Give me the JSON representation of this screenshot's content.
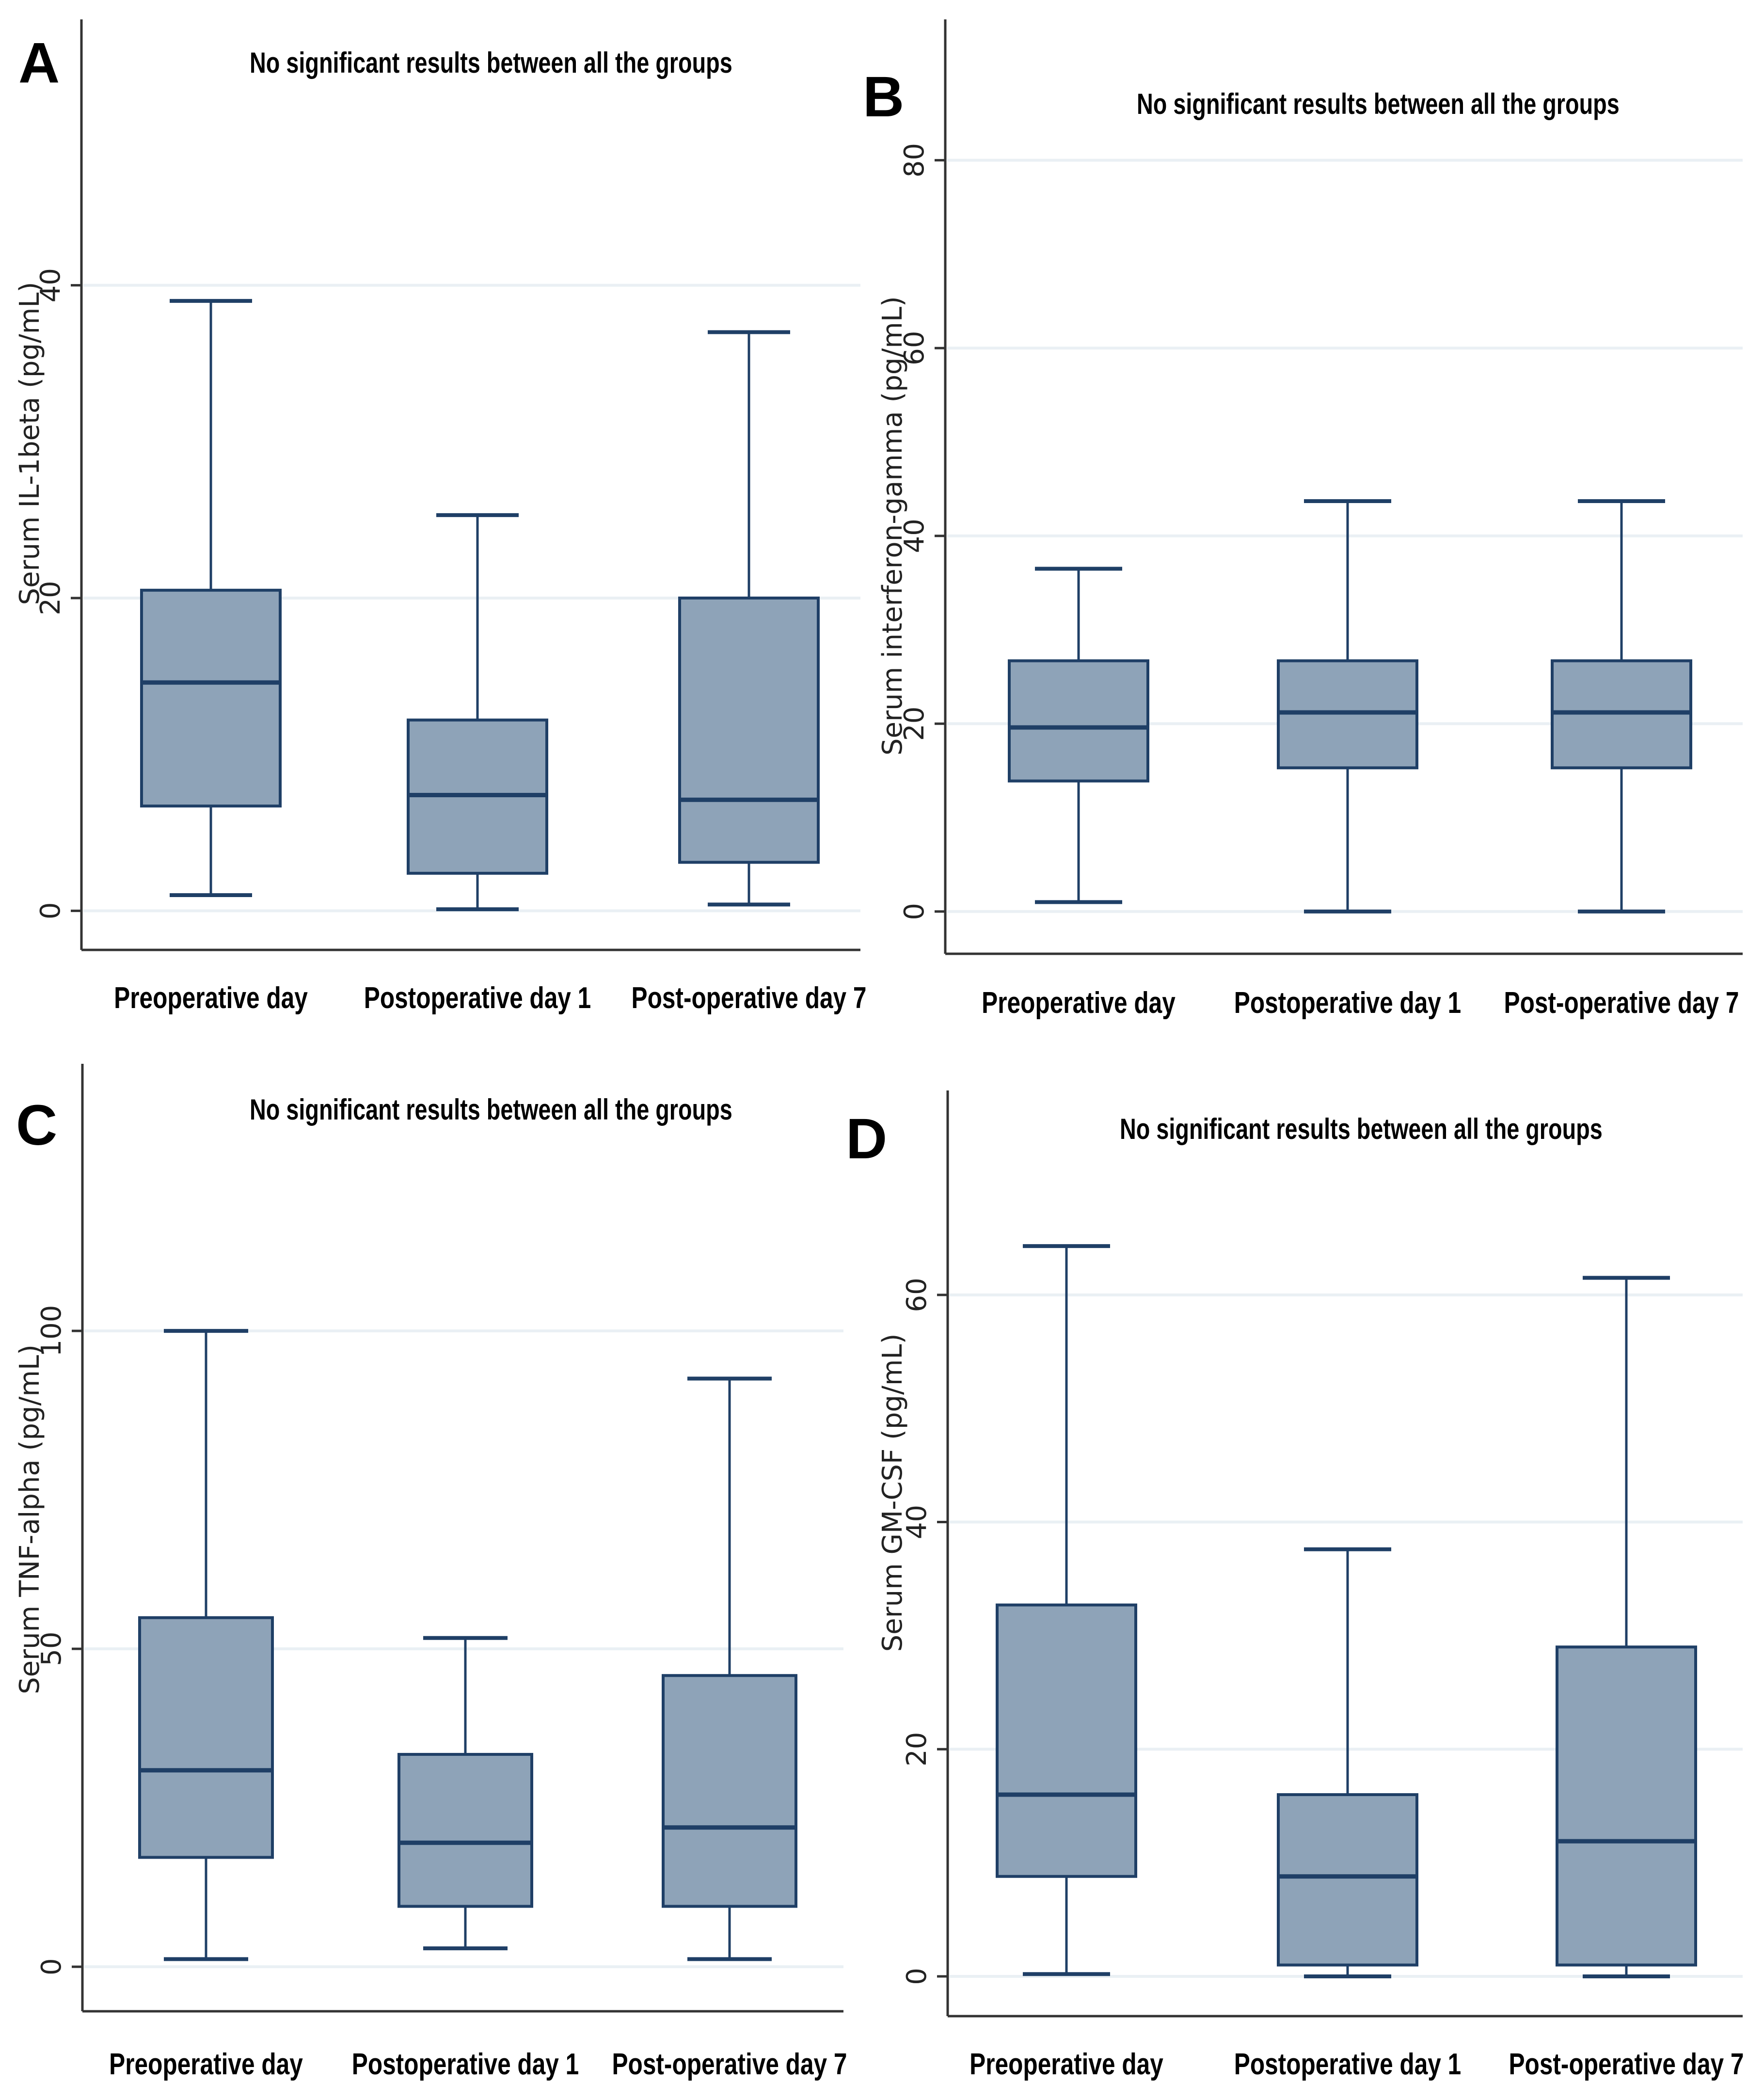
{
  "colors": {
    "box_fill": "#8ea3b8",
    "box_stroke": "#1f3f66",
    "grid": "#eaf0f4",
    "axis": "#333333"
  },
  "chart_data": [
    {
      "panel": "A",
      "type": "box",
      "title": "No significant results between all the groups",
      "xlabel": "",
      "ylabel": "Serum IL-1beta (pg/mL)",
      "categories": [
        "Preoperative day",
        "Postoperative day 1",
        "Post-operative day 7"
      ],
      "yticks": [
        0,
        20,
        40
      ],
      "ylim": [
        -2.5,
        57
      ],
      "boxes": [
        {
          "min": 1,
          "q1": 6.7,
          "median": 14.6,
          "q3": 20.5,
          "max": 39
        },
        {
          "min": 0.1,
          "q1": 2.4,
          "median": 7.4,
          "q3": 12.2,
          "max": 25.3
        },
        {
          "min": 0.4,
          "q1": 3.1,
          "median": 7.1,
          "q3": 20,
          "max": 37
        }
      ]
    },
    {
      "panel": "B",
      "type": "box",
      "title": "No significant results between all the groups",
      "xlabel": "",
      "ylabel": "Serum interferon-gamma (pg/mL)",
      "categories": [
        "Preoperative day",
        "Postoperative day 1",
        "Post-operative day 7"
      ],
      "yticks": [
        0,
        20,
        40,
        60,
        80
      ],
      "ylim": [
        -4.5,
        95
      ],
      "boxes": [
        {
          "min": 1,
          "q1": 13.9,
          "median": 19.6,
          "q3": 26.7,
          "max": 36.5
        },
        {
          "min": 0,
          "q1": 15.3,
          "median": 21.2,
          "q3": 26.7,
          "max": 43.7
        },
        {
          "min": 0,
          "q1": 15.3,
          "median": 21.2,
          "q3": 26.7,
          "max": 43.7
        }
      ]
    },
    {
      "panel": "C",
      "type": "box",
      "title": "No significant results between all the groups",
      "xlabel": "",
      "ylabel": "Serum TNF-alpha (pg/mL)",
      "categories": [
        "Preoperative day",
        "Postoperative day 1",
        "Post-operative day 7"
      ],
      "yticks": [
        0,
        50,
        100
      ],
      "ylim": [
        -7,
        142
      ],
      "boxes": [
        {
          "min": 1.2,
          "q1": 17.2,
          "median": 30.9,
          "q3": 54.9,
          "max": 100
        },
        {
          "min": 2.9,
          "q1": 9.5,
          "median": 19.5,
          "q3": 33.4,
          "max": 51.7
        },
        {
          "min": 1.2,
          "q1": 9.5,
          "median": 21.9,
          "q3": 45.8,
          "max": 92.5
        }
      ]
    },
    {
      "panel": "D",
      "type": "box",
      "title": "No significant results between all the groups",
      "xlabel": "",
      "ylabel": "Serum GM-CSF (pg/mL)",
      "categories": [
        "Preoperative day",
        "Postoperative day 1",
        "Post-operative day 7"
      ],
      "yticks": [
        0,
        20,
        40,
        60
      ],
      "ylim": [
        -3.5,
        78
      ],
      "boxes": [
        {
          "min": 0.2,
          "q1": 8.8,
          "median": 16,
          "q3": 32.7,
          "max": 64.3
        },
        {
          "min": 0,
          "q1": 1,
          "median": 8.8,
          "q3": 16,
          "max": 37.6
        },
        {
          "min": 0,
          "q1": 1,
          "median": 11.9,
          "q3": 29,
          "max": 61.5
        }
      ]
    }
  ]
}
